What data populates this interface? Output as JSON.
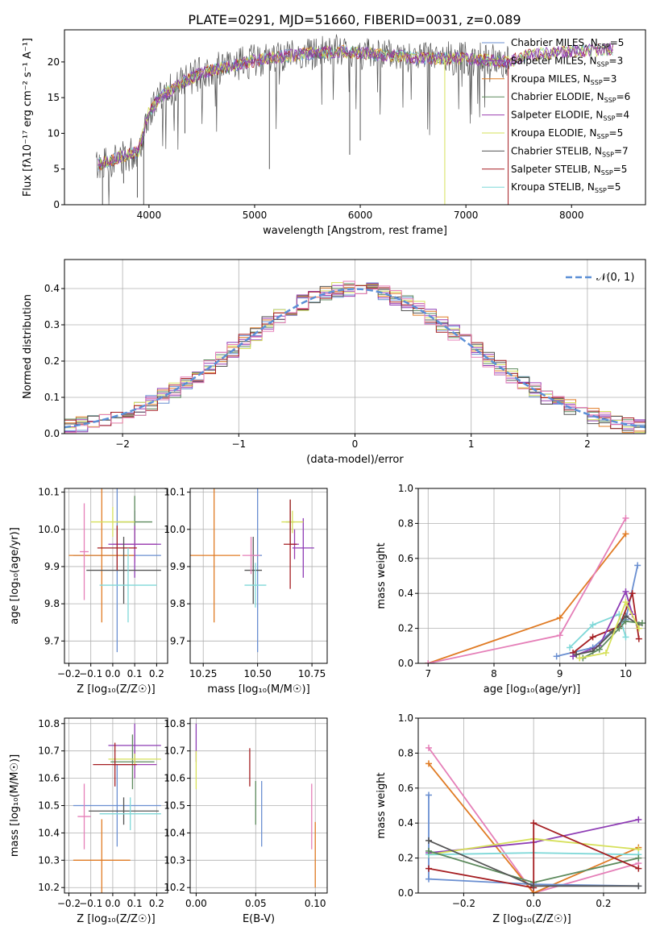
{
  "figure_title": "PLATE=0291, MJD=51660, FIBERID=0031, z=0.089",
  "colors": {
    "chabrier_miles": "#6a8fd1",
    "salpeter_miles": "#8e3db5",
    "kroupa_miles": "#e07b24",
    "chabrier_elodie": "#5d8a5d",
    "salpeter_elodie": "#9c3fb0",
    "kroupa_elodie": "#d6e05a",
    "chabrier_stelib": "#555555",
    "salpeter_stelib": "#a51e22",
    "kroupa_stelib": "#7fd8d8",
    "pink": "#e57fb8",
    "gaussian": "#5b8fd6",
    "grid": "#b0b0b0"
  },
  "chart_data": [
    {
      "id": "spectrum",
      "type": "line",
      "xlabel": "wavelength [Angstrom, rest frame]",
      "ylabel": "Flux [fλ10⁻¹⁷ erg cm⁻² s⁻¹ A⁻¹]",
      "xlim": [
        3200,
        8700
      ],
      "ylim": [
        0,
        24.5
      ],
      "xticks": [
        4000,
        5000,
        6000,
        7000,
        8000
      ],
      "yticks": [
        0,
        5,
        10,
        15,
        20
      ],
      "grid": false,
      "legend_position": "top-right",
      "legend": [
        {
          "label": "Chabrier MILES, N",
          "sub": "SSP",
          "tail": "=5",
          "color": "chabrier_miles"
        },
        {
          "label": "Salpeter MILES, N",
          "sub": "SSP",
          "tail": "=3",
          "color": "salpeter_miles"
        },
        {
          "label": "Kroupa MILES, N",
          "sub": "SSP",
          "tail": "=3",
          "color": "kroupa_miles"
        },
        {
          "label": "Chabrier ELODIE, N",
          "sub": "SSP",
          "tail": "=6",
          "color": "chabrier_elodie"
        },
        {
          "label": "Salpeter ELODIE, N",
          "sub": "SSP",
          "tail": "=4",
          "color": "salpeter_elodie"
        },
        {
          "label": "Kroupa ELODIE, N",
          "sub": "SSP",
          "tail": "=5",
          "color": "kroupa_elodie"
        },
        {
          "label": "Chabrier STELIB, N",
          "sub": "SSP",
          "tail": "=7",
          "color": "chabrier_stelib"
        },
        {
          "label": "Salpeter STELIB, N",
          "sub": "SSP",
          "tail": "=5",
          "color": "salpeter_stelib"
        },
        {
          "label": "Kroupa STELIB, N",
          "sub": "SSP",
          "tail": "=5",
          "color": "kroupa_stelib"
        }
      ],
      "continuum": [
        [
          3500,
          5.5
        ],
        [
          3700,
          6.5
        ],
        [
          3900,
          7.5
        ],
        [
          4000,
          13
        ],
        [
          4100,
          15
        ],
        [
          4300,
          17
        ],
        [
          4500,
          18.5
        ],
        [
          4800,
          19.5
        ],
        [
          5100,
          20.5
        ],
        [
          5400,
          21
        ],
        [
          5800,
          21.5
        ],
        [
          6200,
          21
        ],
        [
          6600,
          20.5
        ],
        [
          7000,
          20.5
        ],
        [
          7400,
          20
        ],
        [
          7600,
          21
        ],
        [
          8000,
          21.5
        ],
        [
          8400,
          21.8
        ]
      ],
      "spikes": [
        [
          3560,
          0
        ],
        [
          3760,
          3
        ],
        [
          3890,
          1
        ],
        [
          3950,
          0
        ],
        [
          4340,
          10
        ],
        [
          5140,
          5
        ],
        [
          5900,
          7
        ],
        [
          6000,
          9
        ],
        [
          6800,
          0
        ],
        [
          7400,
          0
        ]
      ]
    },
    {
      "id": "residual_histogram",
      "type": "histogram",
      "xlabel": "(data-model)/error",
      "ylabel": "Normed distribution",
      "xlim": [
        -2.5,
        2.5
      ],
      "ylim": [
        0,
        0.48
      ],
      "xticks": [
        -2,
        -1,
        0,
        1,
        2
      ],
      "yticks": [
        0.0,
        0.1,
        0.2,
        0.3,
        0.4
      ],
      "ytick_labels": [
        "0.0",
        "0.1",
        "0.2",
        "0.3",
        "0.4"
      ],
      "xtick_labels": [
        "−2",
        "−1",
        "0",
        "1",
        "2"
      ],
      "grid": true,
      "legend_position": "top-right",
      "legend_label": "𝒩(0, 1)",
      "bin_width": 0.1
    },
    {
      "id": "age_vs_Z",
      "type": "errorbar",
      "xlabel": "Z [log₁₀(Z/Z☉)]",
      "ylabel": "age  [log₁₀(age/yr)]",
      "xlim": [
        -0.22,
        0.25
      ],
      "ylim": [
        9.64,
        10.11
      ],
      "xticks": [
        -0.2,
        -0.1,
        0.0,
        0.1,
        0.2
      ],
      "xtick_labels": [
        "−0.2",
        "−0.1",
        "0.0",
        "0.1",
        "0.2"
      ],
      "yticks": [
        9.7,
        9.8,
        9.9,
        10.0,
        10.1
      ],
      "ytick_labels": [
        "9.7",
        "9.8",
        "9.9",
        "10.0",
        "10.1"
      ],
      "grid": true,
      "points": [
        {
          "x": 0.02,
          "xerr": 0.2,
          "y": 9.93,
          "yerr": 0.26,
          "color": "chabrier_miles"
        },
        {
          "x": 0.1,
          "xerr": 0.12,
          "y": 9.96,
          "yerr": 0.09,
          "color": "salpeter_miles"
        },
        {
          "x": -0.05,
          "xerr": 0.15,
          "y": 9.93,
          "yerr": 0.18,
          "color": "kroupa_miles"
        },
        {
          "x": 0.1,
          "xerr": 0.08,
          "y": 10.02,
          "yerr": 0.07,
          "color": "chabrier_elodie"
        },
        {
          "x": 0.1,
          "xerr": 0.1,
          "y": 9.96,
          "yerr": 0.05,
          "color": "salpeter_elodie"
        },
        {
          "x": 0.0,
          "xerr": 0.1,
          "y": 10.02,
          "yerr": 0.04,
          "color": "kroupa_elodie"
        },
        {
          "x": 0.05,
          "xerr": 0.17,
          "y": 9.89,
          "yerr": 0.09,
          "color": "chabrier_stelib"
        },
        {
          "x": 0.02,
          "xerr": 0.09,
          "y": 9.95,
          "yerr": 0.06,
          "color": "salpeter_stelib"
        },
        {
          "x": 0.07,
          "xerr": 0.13,
          "y": 9.85,
          "yerr": 0.1,
          "color": "kroupa_stelib"
        },
        {
          "x": -0.13,
          "xerr": 0.02,
          "y": 9.94,
          "yerr": 0.13,
          "color": "pink"
        }
      ]
    },
    {
      "id": "age_vs_mass",
      "type": "errorbar",
      "xlabel": "mass [log₁₀(M/M☉)]",
      "xlim": [
        10.19,
        10.82
      ],
      "ylim": [
        9.64,
        10.11
      ],
      "xticks": [
        10.25,
        10.5,
        10.75
      ],
      "xtick_labels": [
        "10.25",
        "10.50",
        "10.75"
      ],
      "yticks": [
        9.7,
        9.8,
        9.9,
        10.0,
        10.1
      ],
      "ytick_labels": [
        "9.7",
        "9.8",
        "9.9",
        "10.0",
        "10.1"
      ],
      "grid": true,
      "points": [
        {
          "x": 10.5,
          "xerr": 0.02,
          "y": 9.93,
          "yerr": 0.26,
          "color": "chabrier_miles"
        },
        {
          "x": 10.71,
          "xerr": 0.05,
          "y": 9.95,
          "yerr": 0.08,
          "color": "salpeter_miles"
        },
        {
          "x": 10.3,
          "xerr": 0.12,
          "y": 9.93,
          "yerr": 0.18,
          "color": "kroupa_miles"
        },
        {
          "x": 10.65,
          "xerr": 0.02,
          "y": 10.02,
          "yerr": 0.06,
          "color": "chabrier_elodie"
        },
        {
          "x": 10.67,
          "xerr": 0.02,
          "y": 9.96,
          "yerr": 0.04,
          "color": "salpeter_elodie"
        },
        {
          "x": 10.66,
          "xerr": 0.05,
          "y": 10.02,
          "yerr": 0.03,
          "color": "kroupa_elodie"
        },
        {
          "x": 10.48,
          "xerr": 0.04,
          "y": 9.89,
          "yerr": 0.09,
          "color": "chabrier_stelib"
        },
        {
          "x": 10.65,
          "xerr": 0.03,
          "y": 9.96,
          "yerr": 0.12,
          "color": "salpeter_stelib"
        },
        {
          "x": 10.49,
          "xerr": 0.05,
          "y": 9.85,
          "yerr": 0.06,
          "color": "kroupa_stelib"
        },
        {
          "x": 10.47,
          "xerr": 0.04,
          "y": 9.93,
          "yerr": 0.05,
          "color": "pink"
        }
      ]
    },
    {
      "id": "massweight_vs_age",
      "type": "line",
      "xlabel": "age  [log₁₀(age/yr)]",
      "ylabel": "mass weight",
      "xlim": [
        6.85,
        10.3
      ],
      "ylim": [
        0,
        1.0
      ],
      "xticks": [
        7,
        8,
        9,
        10
      ],
      "yticks": [
        0,
        0.2,
        0.4,
        0.6,
        0.8,
        1.0
      ],
      "ytick_labels": [
        "0.0",
        "0.2",
        "0.4",
        "0.6",
        "0.8",
        "1.0"
      ],
      "grid": true,
      "series": [
        {
          "color": "kroupa_miles",
          "x": [
            7.0,
            9.0,
            10.0
          ],
          "y": [
            0.0,
            0.26,
            0.74
          ]
        },
        {
          "color": "pink",
          "x": [
            7.0,
            9.0,
            10.0
          ],
          "y": [
            0.0,
            0.16,
            0.83
          ]
        },
        {
          "color": "chabrier_miles",
          "x": [
            8.95,
            9.5,
            10.0,
            10.18
          ],
          "y": [
            0.04,
            0.09,
            0.25,
            0.56
          ]
        },
        {
          "color": "kroupa_stelib",
          "x": [
            9.15,
            9.5,
            9.9,
            10.0
          ],
          "y": [
            0.09,
            0.22,
            0.28,
            0.15
          ]
        },
        {
          "color": "salpeter_stelib",
          "x": [
            9.2,
            9.5,
            9.9,
            10.1,
            10.2
          ],
          "y": [
            0.06,
            0.15,
            0.21,
            0.4,
            0.14
          ]
        },
        {
          "color": "salpeter_miles",
          "x": [
            9.2,
            9.6,
            10.0,
            10.1
          ],
          "y": [
            0.04,
            0.1,
            0.41,
            0.28
          ]
        },
        {
          "color": "chabrier_stelib",
          "x": [
            9.25,
            9.5,
            9.8,
            10.0,
            10.2
          ],
          "y": [
            0.05,
            0.07,
            0.18,
            0.27,
            0.22
          ]
        },
        {
          "color": "chabrier_elodie",
          "x": [
            9.35,
            9.6,
            9.9,
            10.0,
            10.25
          ],
          "y": [
            0.03,
            0.08,
            0.2,
            0.24,
            0.23
          ]
        },
        {
          "color": "kroupa_elodie",
          "x": [
            9.3,
            9.7,
            10.0,
            10.2
          ],
          "y": [
            0.03,
            0.06,
            0.35,
            0.2
          ]
        }
      ]
    },
    {
      "id": "mass_vs_Z",
      "type": "errorbar",
      "xlabel": "Z [log₁₀(Z/Z☉)]",
      "ylabel": "mass [log₁₀(M/M☉)]",
      "xlim": [
        -0.22,
        0.25
      ],
      "ylim": [
        10.18,
        10.82
      ],
      "xticks": [
        -0.2,
        -0.1,
        0.0,
        0.1,
        0.2
      ],
      "xtick_labels": [
        "−0.2",
        "−0.1",
        "0.0",
        "0.1",
        "0.2"
      ],
      "yticks": [
        10.2,
        10.3,
        10.4,
        10.5,
        10.6,
        10.7,
        10.8
      ],
      "ytick_labels": [
        "10.2",
        "10.3",
        "10.4",
        "10.5",
        "10.6",
        "10.7",
        "10.8"
      ],
      "grid": true,
      "points": [
        {
          "x": 0.02,
          "xerr": 0.2,
          "y": 10.5,
          "yerr": 0.15,
          "color": "chabrier_miles"
        },
        {
          "x": 0.1,
          "xerr": 0.12,
          "y": 10.72,
          "yerr": 0.08,
          "color": "salpeter_miles"
        },
        {
          "x": -0.05,
          "xerr": 0.13,
          "y": 10.3,
          "yerr": 0.15,
          "color": "kroupa_miles"
        },
        {
          "x": 0.09,
          "xerr": 0.1,
          "y": 10.66,
          "yerr": 0.1,
          "color": "chabrier_elodie"
        },
        {
          "x": 0.1,
          "xerr": 0.1,
          "y": 10.65,
          "yerr": 0.05,
          "color": "salpeter_elodie"
        },
        {
          "x": 0.1,
          "xerr": 0.12,
          "y": 10.67,
          "yerr": 0.02,
          "color": "kroupa_elodie"
        },
        {
          "x": 0.05,
          "xerr": 0.16,
          "y": 10.48,
          "yerr": 0.05,
          "color": "chabrier_stelib"
        },
        {
          "x": 0.01,
          "xerr": 0.1,
          "y": 10.65,
          "yerr": 0.08,
          "color": "salpeter_stelib"
        },
        {
          "x": 0.08,
          "xerr": 0.14,
          "y": 10.47,
          "yerr": 0.06,
          "color": "kroupa_stelib"
        },
        {
          "x": -0.13,
          "xerr": 0.03,
          "y": 10.46,
          "yerr": 0.12,
          "color": "pink"
        }
      ]
    },
    {
      "id": "mass_vs_ebv",
      "type": "errorbar",
      "xlabel": "E(B-V)",
      "xlim": [
        -0.005,
        0.11
      ],
      "ylim": [
        10.18,
        10.82
      ],
      "xticks": [
        0.0,
        0.05,
        0.1
      ],
      "xtick_labels": [
        "0.00",
        "0.05",
        "0.10"
      ],
      "yticks": [
        10.2,
        10.3,
        10.4,
        10.5,
        10.6,
        10.7,
        10.8
      ],
      "ytick_labels": [
        "10.2",
        "10.3",
        "10.4",
        "10.5",
        "10.6",
        "10.7",
        "10.8"
      ],
      "grid": true,
      "points": [
        {
          "x": 0.0,
          "y": 10.73,
          "yerr": 0.07,
          "color": "salpeter_miles"
        },
        {
          "x": 0.0,
          "y": 10.63,
          "yerr": 0.07,
          "color": "kroupa_elodie"
        },
        {
          "x": 0.045,
          "y": 10.64,
          "yerr": 0.07,
          "color": "salpeter_stelib"
        },
        {
          "x": 0.05,
          "y": 10.51,
          "yerr": 0.08,
          "color": "chabrier_elodie"
        },
        {
          "x": 0.055,
          "y": 10.47,
          "yerr": 0.12,
          "color": "chabrier_miles"
        },
        {
          "x": 0.097,
          "y": 10.46,
          "yerr": 0.12,
          "color": "pink"
        },
        {
          "x": 0.1,
          "y": 10.32,
          "yerr": 0.12,
          "color": "kroupa_miles"
        }
      ]
    },
    {
      "id": "massweight_vs_Z",
      "type": "line",
      "xlabel": "Z [log₁₀(Z/Z☉)]",
      "ylabel": "mass weight",
      "xlim": [
        -0.33,
        0.32
      ],
      "ylim": [
        0,
        1.0
      ],
      "xticks": [
        -0.2,
        0.0,
        0.2
      ],
      "xtick_labels": [
        "−0.2",
        "0.0",
        "0.2"
      ],
      "yticks": [
        0,
        0.2,
        0.4,
        0.6,
        0.8,
        1.0
      ],
      "ytick_labels": [
        "0.0",
        "0.2",
        "0.4",
        "0.6",
        "0.8",
        "1.0"
      ],
      "grid": true,
      "series": [
        {
          "color": "pink",
          "x": [
            -0.3,
            0.0,
            0.3
          ],
          "y": [
            0.83,
            0.0,
            0.17
          ]
        },
        {
          "color": "kroupa_miles",
          "x": [
            -0.3,
            0.0,
            0.3
          ],
          "y": [
            0.74,
            0.0,
            0.26
          ]
        },
        {
          "color": "chabrier_miles",
          "x": [
            -0.3,
            -0.3,
            0.0,
            0.3
          ],
          "y": [
            0.56,
            0.08,
            0.05,
            0.04
          ]
        },
        {
          "color": "salpeter_miles",
          "x": [
            -0.3,
            0.0,
            0.3
          ],
          "y": [
            0.23,
            0.29,
            0.42
          ]
        },
        {
          "color": "kroupa_elodie",
          "x": [
            -0.3,
            0.0,
            0.3
          ],
          "y": [
            0.22,
            0.31,
            0.25
          ]
        },
        {
          "color": "kroupa_stelib",
          "x": [
            -0.3,
            0.0,
            0.3
          ],
          "y": [
            0.22,
            0.23,
            0.22
          ]
        },
        {
          "color": "chabrier_elodie",
          "x": [
            -0.3,
            0.0,
            0.3
          ],
          "y": [
            0.24,
            0.06,
            0.2
          ]
        },
        {
          "color": "salpeter_stelib",
          "x": [
            -0.3,
            0.0,
            0.0,
            0.3
          ],
          "y": [
            0.14,
            0.03,
            0.4,
            0.14
          ]
        },
        {
          "color": "chabrier_stelib",
          "x": [
            -0.3,
            0.0,
            0.3
          ],
          "y": [
            0.3,
            0.04,
            0.04
          ]
        }
      ]
    }
  ]
}
